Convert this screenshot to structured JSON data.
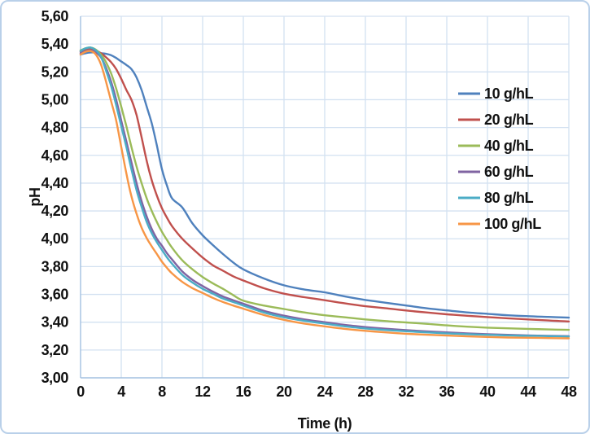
{
  "window": {
    "background": "#FFFFFF",
    "border_color": "#B9D0E9"
  },
  "chart_data": {
    "type": "line",
    "title": "",
    "xlabel": "Time (h)",
    "ylabel": "pH",
    "xlim": [
      0,
      48
    ],
    "ylim": [
      3.0,
      5.6
    ],
    "xtick_step": 4,
    "ytick_step": 0.2,
    "decimal_separator": ",",
    "grid": true,
    "gridline_color": "#D3E1F1",
    "axis_color": "#A3C0E0",
    "tick_label_color": "#111111",
    "legend_position": "inside-right",
    "x": [
      0,
      0.5,
      1,
      1.5,
      2,
      2.5,
      3,
      3.5,
      4,
      4.5,
      5,
      5.5,
      6,
      6.5,
      7,
      7.5,
      8,
      8.5,
      9,
      10,
      11,
      12,
      13,
      14,
      15,
      16,
      18,
      20,
      22,
      24,
      26,
      28,
      30,
      32,
      34,
      36,
      38,
      40,
      42,
      44,
      46,
      48
    ],
    "series": [
      {
        "name": "10 g/hL",
        "color": "#4F81BD",
        "values": [
          5.325,
          5.335,
          5.34,
          5.34,
          5.335,
          5.33,
          5.32,
          5.3,
          5.275,
          5.25,
          5.22,
          5.16,
          5.07,
          4.95,
          4.83,
          4.67,
          4.5,
          4.38,
          4.29,
          4.225,
          4.11,
          4.025,
          3.955,
          3.89,
          3.83,
          3.78,
          3.715,
          3.665,
          3.635,
          3.615,
          3.585,
          3.56,
          3.54,
          3.52,
          3.5,
          3.485,
          3.47,
          3.46,
          3.45,
          3.443,
          3.438,
          3.433
        ]
      },
      {
        "name": "20 g/hL",
        "color": "#C0504D",
        "values": [
          5.345,
          5.36,
          5.365,
          5.355,
          5.335,
          5.305,
          5.27,
          5.22,
          5.15,
          5.07,
          5.0,
          4.89,
          4.73,
          4.56,
          4.42,
          4.31,
          4.22,
          4.15,
          4.09,
          4.0,
          3.93,
          3.865,
          3.81,
          3.77,
          3.73,
          3.7,
          3.645,
          3.605,
          3.58,
          3.558,
          3.535,
          3.515,
          3.5,
          3.484,
          3.47,
          3.457,
          3.446,
          3.437,
          3.428,
          3.42,
          3.412,
          3.405
        ]
      },
      {
        "name": "40 g/hL",
        "color": "#9BBB59",
        "values": [
          5.355,
          5.37,
          5.375,
          5.36,
          5.325,
          5.27,
          5.19,
          5.08,
          4.95,
          4.81,
          4.66,
          4.52,
          4.4,
          4.29,
          4.2,
          4.12,
          4.05,
          3.99,
          3.935,
          3.845,
          3.78,
          3.725,
          3.68,
          3.64,
          3.595,
          3.555,
          3.52,
          3.495,
          3.47,
          3.45,
          3.435,
          3.42,
          3.408,
          3.398,
          3.388,
          3.377,
          3.368,
          3.361,
          3.356,
          3.352,
          3.348,
          3.345
        ]
      },
      {
        "name": "60 g/hL",
        "color": "#8064A2",
        "values": [
          5.335,
          5.35,
          5.355,
          5.34,
          5.305,
          5.23,
          5.13,
          5.0,
          4.85,
          4.7,
          4.55,
          4.4,
          4.27,
          4.16,
          4.07,
          4.0,
          3.95,
          3.895,
          3.85,
          3.765,
          3.705,
          3.66,
          3.62,
          3.585,
          3.558,
          3.533,
          3.482,
          3.447,
          3.42,
          3.4,
          3.38,
          3.365,
          3.353,
          3.343,
          3.334,
          3.327,
          3.32,
          3.314,
          3.309,
          3.305,
          3.302,
          3.3
        ]
      },
      {
        "name": "80 g/hL",
        "color": "#4BACC6",
        "values": [
          5.35,
          5.37,
          5.375,
          5.355,
          5.31,
          5.21,
          5.1,
          4.96,
          4.81,
          4.66,
          4.5,
          4.35,
          4.23,
          4.12,
          4.04,
          3.975,
          3.92,
          3.865,
          3.82,
          3.74,
          3.685,
          3.64,
          3.605,
          3.57,
          3.545,
          3.52,
          3.47,
          3.435,
          3.41,
          3.39,
          3.37,
          3.355,
          3.344,
          3.335,
          3.327,
          3.32,
          3.314,
          3.309,
          3.305,
          3.302,
          3.3,
          3.297
        ]
      },
      {
        "name": "100 g/hL",
        "color": "#F79646",
        "values": [
          5.325,
          5.345,
          5.35,
          5.325,
          5.255,
          5.13,
          4.99,
          4.85,
          4.66,
          4.47,
          4.305,
          4.18,
          4.08,
          4.005,
          3.945,
          3.89,
          3.835,
          3.79,
          3.75,
          3.69,
          3.645,
          3.61,
          3.575,
          3.545,
          3.52,
          3.497,
          3.452,
          3.417,
          3.39,
          3.37,
          3.352,
          3.338,
          3.327,
          3.317,
          3.31,
          3.304,
          3.298,
          3.294,
          3.29,
          3.288,
          3.286,
          3.284
        ]
      }
    ]
  }
}
